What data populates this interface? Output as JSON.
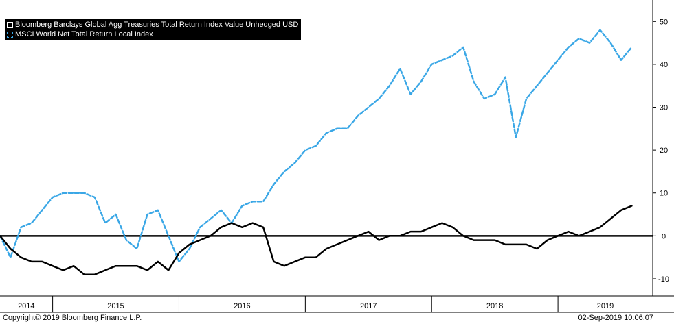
{
  "chart_data": {
    "type": "line",
    "title": "",
    "xlabel": "",
    "ylabel": "",
    "ylim": [
      -14,
      55
    ],
    "yticks": [
      -10,
      0,
      10,
      20,
      30,
      40,
      50
    ],
    "x_tick_labels": [
      "2014",
      "2015",
      "2016",
      "2017",
      "2018",
      "2019"
    ],
    "x_range": [
      "2014-08",
      "2019-10"
    ],
    "grid": false,
    "legend_position": "top-left",
    "series": [
      {
        "name": "Bloomberg Barclays Global Agg Treasuries Total Return Index Value Unhedged USD",
        "color": "#000000",
        "style": "solid",
        "x": [
          "2014-08",
          "2014-09",
          "2014-10",
          "2014-11",
          "2014-12",
          "2015-01",
          "2015-02",
          "2015-03",
          "2015-04",
          "2015-05",
          "2015-06",
          "2015-07",
          "2015-08",
          "2015-09",
          "2015-10",
          "2015-11",
          "2015-12",
          "2016-01",
          "2016-02",
          "2016-03",
          "2016-04",
          "2016-05",
          "2016-06",
          "2016-07",
          "2016-08",
          "2016-09",
          "2016-10",
          "2016-11",
          "2016-12",
          "2017-01",
          "2017-02",
          "2017-03",
          "2017-04",
          "2017-05",
          "2017-06",
          "2017-07",
          "2017-08",
          "2017-09",
          "2017-10",
          "2017-11",
          "2017-12",
          "2018-01",
          "2018-02",
          "2018-03",
          "2018-04",
          "2018-05",
          "2018-06",
          "2018-07",
          "2018-08",
          "2018-09",
          "2018-10",
          "2018-11",
          "2018-12",
          "2019-01",
          "2019-02",
          "2019-03",
          "2019-04",
          "2019-05",
          "2019-06",
          "2019-07",
          "2019-08"
        ],
        "values": [
          0,
          -3,
          -5,
          -6,
          -6,
          -7,
          -8,
          -7,
          -9,
          -9,
          -8,
          -7,
          -7,
          -7,
          -8,
          -6,
          -8,
          -4,
          -2,
          -1,
          0,
          2,
          3,
          2,
          3,
          2,
          -6,
          -7,
          -6,
          -5,
          -5,
          -3,
          -2,
          -1,
          0,
          1,
          -1,
          0,
          0,
          1,
          1,
          2,
          3,
          2,
          0,
          -1,
          -1,
          -1,
          -2,
          -2,
          -2,
          -3,
          -1,
          0,
          1,
          0,
          1,
          2,
          4,
          6,
          7
        ]
      },
      {
        "name": "MSCI World Net Total Return Local Index",
        "color": "#3aa7e6",
        "style": "dashed",
        "x": [
          "2014-08",
          "2014-09",
          "2014-10",
          "2014-11",
          "2014-12",
          "2015-01",
          "2015-02",
          "2015-03",
          "2015-04",
          "2015-05",
          "2015-06",
          "2015-07",
          "2015-08",
          "2015-09",
          "2015-10",
          "2015-11",
          "2015-12",
          "2016-01",
          "2016-02",
          "2016-03",
          "2016-04",
          "2016-05",
          "2016-06",
          "2016-07",
          "2016-08",
          "2016-09",
          "2016-10",
          "2016-11",
          "2016-12",
          "2017-01",
          "2017-02",
          "2017-03",
          "2017-04",
          "2017-05",
          "2017-06",
          "2017-07",
          "2017-08",
          "2017-09",
          "2017-10",
          "2017-11",
          "2017-12",
          "2018-01",
          "2018-02",
          "2018-03",
          "2018-04",
          "2018-05",
          "2018-06",
          "2018-07",
          "2018-08",
          "2018-09",
          "2018-10",
          "2018-11",
          "2018-12",
          "2019-01",
          "2019-02",
          "2019-03",
          "2019-04",
          "2019-05",
          "2019-06",
          "2019-07",
          "2019-08"
        ],
        "values": [
          0,
          -5,
          2,
          3,
          6,
          9,
          10,
          10,
          10,
          9,
          3,
          5,
          -1,
          -3,
          5,
          6,
          0,
          -6,
          -3,
          2,
          4,
          6,
          3,
          7,
          8,
          8,
          12,
          15,
          17,
          20,
          21,
          24,
          25,
          25,
          28,
          30,
          32,
          35,
          39,
          33,
          36,
          40,
          41,
          42,
          44,
          36,
          32,
          33,
          37,
          23,
          32,
          35,
          38,
          41,
          44,
          46,
          45,
          48,
          45,
          41,
          44
        ]
      }
    ]
  },
  "footer": {
    "copyright": "Copyright© 2019 Bloomberg Finance L.P.",
    "timestamp": "02-Sep-2019 10:06:07"
  }
}
